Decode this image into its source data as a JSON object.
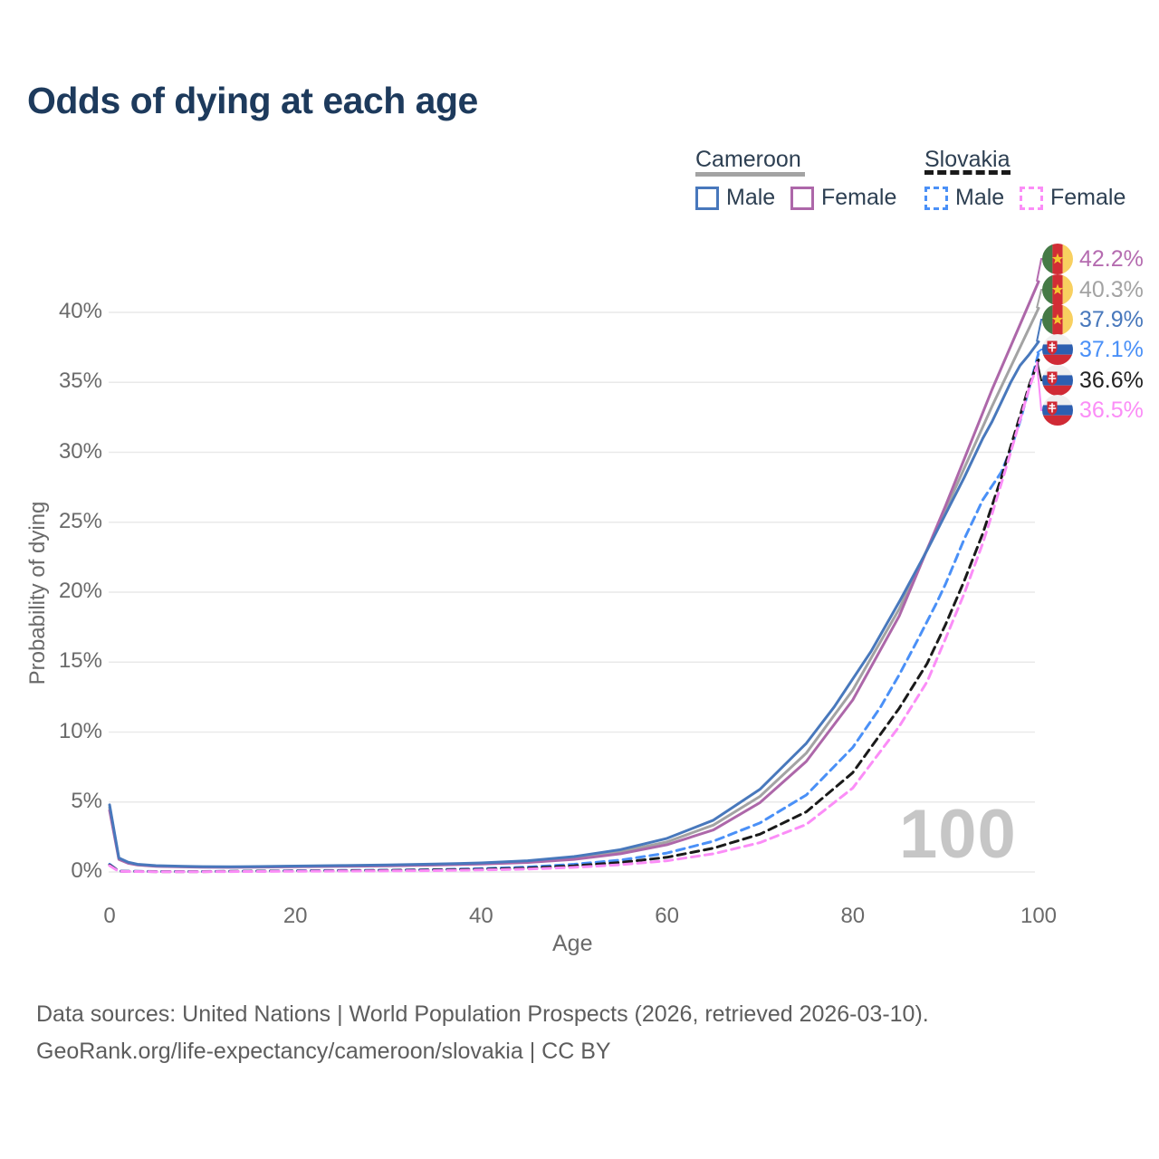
{
  "title": "Odds of dying at each age",
  "legend": {
    "groups": [
      {
        "name": "Cameroon",
        "line_style": "solid",
        "underline_color": "#a3a3a3",
        "items": [
          {
            "label": "Male",
            "color": "#4878bc"
          },
          {
            "label": "Female",
            "color": "#ad67a9"
          }
        ]
      },
      {
        "name": "Slovakia",
        "line_style": "dashed",
        "underline_color": "#1a1a1a",
        "items": [
          {
            "label": "Male",
            "color": "#4a90f7"
          },
          {
            "label": "Female",
            "color": "#fb8df7"
          }
        ]
      }
    ]
  },
  "chart_data": {
    "type": "line",
    "title": "Odds of dying at each age",
    "xlabel": "Age",
    "ylabel": "Probability of dying",
    "xlim": [
      0,
      100
    ],
    "ylim": [
      0,
      44
    ],
    "x_ticks": [
      0,
      20,
      40,
      60,
      80,
      100
    ],
    "y_ticks": [
      0,
      5,
      10,
      15,
      20,
      25,
      30,
      35,
      40
    ],
    "y_tick_suffix": "%",
    "grid": "horizontal",
    "gridline_color": "#e9e9e9",
    "legend_position": "top-right",
    "watermark": "100",
    "series": [
      {
        "id": "cameroon-both",
        "name": "Cameroon Both sexes",
        "color": "#a3a3a3",
        "dash": false,
        "end_value_label": "40.3%",
        "points": [
          [
            0,
            4.6
          ],
          [
            1,
            0.95
          ],
          [
            2,
            0.66
          ],
          [
            3,
            0.52
          ],
          [
            5,
            0.42
          ],
          [
            8,
            0.38
          ],
          [
            10,
            0.36
          ],
          [
            13,
            0.35
          ],
          [
            15,
            0.36
          ],
          [
            20,
            0.4
          ],
          [
            25,
            0.43
          ],
          [
            30,
            0.47
          ],
          [
            35,
            0.52
          ],
          [
            40,
            0.6
          ],
          [
            45,
            0.74
          ],
          [
            50,
            1.0
          ],
          [
            55,
            1.45
          ],
          [
            60,
            2.15
          ],
          [
            65,
            3.35
          ],
          [
            70,
            5.4
          ],
          [
            75,
            8.5
          ],
          [
            80,
            13.0
          ],
          [
            85,
            18.8
          ],
          [
            90,
            25.9
          ],
          [
            95,
            33.3
          ],
          [
            100,
            40.3
          ]
        ]
      },
      {
        "id": "cameroon-female",
        "name": "Cameroon Female",
        "color": "#ad67a9",
        "dash": false,
        "end_value_label": "42.2%",
        "points": [
          [
            0,
            4.4
          ],
          [
            1,
            0.9
          ],
          [
            2,
            0.62
          ],
          [
            3,
            0.5
          ],
          [
            5,
            0.4
          ],
          [
            8,
            0.36
          ],
          [
            10,
            0.34
          ],
          [
            13,
            0.33
          ],
          [
            15,
            0.34
          ],
          [
            20,
            0.37
          ],
          [
            25,
            0.4
          ],
          [
            30,
            0.44
          ],
          [
            35,
            0.49
          ],
          [
            40,
            0.56
          ],
          [
            45,
            0.68
          ],
          [
            50,
            0.9
          ],
          [
            55,
            1.3
          ],
          [
            60,
            1.95
          ],
          [
            65,
            3.0
          ],
          [
            70,
            4.95
          ],
          [
            75,
            7.9
          ],
          [
            80,
            12.3
          ],
          [
            85,
            18.3
          ],
          [
            90,
            26.2
          ],
          [
            95,
            34.5
          ],
          [
            100,
            42.2
          ]
        ]
      },
      {
        "id": "cameroon-male",
        "name": "Cameroon Male",
        "color": "#4878bc",
        "dash": false,
        "end_value_label": "37.9%",
        "points": [
          [
            0,
            4.8
          ],
          [
            1,
            1.0
          ],
          [
            2,
            0.7
          ],
          [
            3,
            0.55
          ],
          [
            5,
            0.45
          ],
          [
            8,
            0.4
          ],
          [
            10,
            0.38
          ],
          [
            13,
            0.37
          ],
          [
            15,
            0.38
          ],
          [
            20,
            0.42
          ],
          [
            25,
            0.46
          ],
          [
            30,
            0.5
          ],
          [
            35,
            0.56
          ],
          [
            40,
            0.65
          ],
          [
            45,
            0.8
          ],
          [
            50,
            1.1
          ],
          [
            55,
            1.6
          ],
          [
            60,
            2.4
          ],
          [
            65,
            3.7
          ],
          [
            70,
            5.9
          ],
          [
            75,
            9.2
          ],
          [
            78,
            11.8
          ],
          [
            80,
            13.8
          ],
          [
            82,
            15.8
          ],
          [
            85,
            19.3
          ],
          [
            88,
            23.0
          ],
          [
            90,
            25.6
          ],
          [
            92,
            28.2
          ],
          [
            94,
            31.0
          ],
          [
            95,
            32.2
          ],
          [
            96,
            33.6
          ],
          [
            97,
            35.0
          ],
          [
            98,
            36.2
          ],
          [
            99,
            37.0
          ],
          [
            100,
            37.9
          ]
        ]
      },
      {
        "id": "slovakia-male",
        "name": "Slovakia Male",
        "color": "#4a90f7",
        "dash": true,
        "end_value_label": "37.1%",
        "points": [
          [
            0,
            0.55
          ],
          [
            1,
            0.06
          ],
          [
            5,
            0.03
          ],
          [
            10,
            0.03
          ],
          [
            15,
            0.06
          ],
          [
            20,
            0.09
          ],
          [
            25,
            0.11
          ],
          [
            30,
            0.13
          ],
          [
            35,
            0.17
          ],
          [
            40,
            0.24
          ],
          [
            45,
            0.35
          ],
          [
            50,
            0.55
          ],
          [
            55,
            0.85
          ],
          [
            60,
            1.35
          ],
          [
            65,
            2.2
          ],
          [
            70,
            3.5
          ],
          [
            75,
            5.5
          ],
          [
            80,
            8.9
          ],
          [
            83,
            11.8
          ],
          [
            85,
            14.1
          ],
          [
            87,
            16.6
          ],
          [
            89,
            19.2
          ],
          [
            90,
            20.6
          ],
          [
            91,
            22.2
          ],
          [
            92,
            23.8
          ],
          [
            93,
            25.2
          ],
          [
            94,
            26.6
          ],
          [
            95,
            27.6
          ],
          [
            96,
            28.6
          ],
          [
            97,
            30.2
          ],
          [
            98,
            32.2
          ],
          [
            99,
            34.6
          ],
          [
            100,
            37.1
          ]
        ]
      },
      {
        "id": "slovakia-both",
        "name": "Slovakia Both sexes",
        "color": "#1a1a1a",
        "dash": true,
        "end_value_label": "36.6%",
        "points": [
          [
            0,
            0.5
          ],
          [
            1,
            0.05
          ],
          [
            5,
            0.025
          ],
          [
            10,
            0.025
          ],
          [
            15,
            0.05
          ],
          [
            20,
            0.07
          ],
          [
            25,
            0.09
          ],
          [
            30,
            0.11
          ],
          [
            35,
            0.14
          ],
          [
            40,
            0.19
          ],
          [
            45,
            0.28
          ],
          [
            50,
            0.44
          ],
          [
            55,
            0.68
          ],
          [
            60,
            1.05
          ],
          [
            65,
            1.7
          ],
          [
            70,
            2.7
          ],
          [
            75,
            4.3
          ],
          [
            80,
            7.1
          ],
          [
            85,
            11.7
          ],
          [
            88,
            14.9
          ],
          [
            90,
            17.7
          ],
          [
            92,
            20.8
          ],
          [
            94,
            24.2
          ],
          [
            95,
            26.2
          ],
          [
            96,
            28.2
          ],
          [
            97,
            30.4
          ],
          [
            98,
            32.6
          ],
          [
            99,
            34.8
          ],
          [
            100,
            36.6
          ]
        ]
      },
      {
        "id": "slovakia-female",
        "name": "Slovakia Female",
        "color": "#fb8df7",
        "dash": true,
        "end_value_label": "36.5%",
        "points": [
          [
            0,
            0.45
          ],
          [
            1,
            0.04
          ],
          [
            5,
            0.02
          ],
          [
            10,
            0.02
          ],
          [
            15,
            0.035
          ],
          [
            20,
            0.05
          ],
          [
            25,
            0.065
          ],
          [
            30,
            0.08
          ],
          [
            35,
            0.1
          ],
          [
            40,
            0.14
          ],
          [
            45,
            0.21
          ],
          [
            50,
            0.33
          ],
          [
            55,
            0.52
          ],
          [
            60,
            0.8
          ],
          [
            65,
            1.3
          ],
          [
            70,
            2.1
          ],
          [
            75,
            3.4
          ],
          [
            80,
            6.0
          ],
          [
            85,
            10.4
          ],
          [
            88,
            13.6
          ],
          [
            90,
            16.7
          ],
          [
            92,
            19.9
          ],
          [
            94,
            23.5
          ],
          [
            95,
            25.6
          ],
          [
            96,
            27.8
          ],
          [
            97,
            30.0
          ],
          [
            98,
            32.3
          ],
          [
            99,
            34.6
          ],
          [
            100,
            36.5
          ]
        ]
      }
    ]
  },
  "end_labels": [
    {
      "series": "cameroon-female",
      "value": "42.2%",
      "color": "#b56cb0",
      "flag": "cameroon"
    },
    {
      "series": "cameroon-both",
      "value": "40.3%",
      "color": "#a3a3a3",
      "flag": "cameroon"
    },
    {
      "series": "cameroon-male",
      "value": "37.9%",
      "color": "#4878bc",
      "flag": "cameroon"
    },
    {
      "series": "slovakia-male",
      "value": "37.1%",
      "color": "#4a90f7",
      "flag": "slovakia"
    },
    {
      "series": "slovakia-both",
      "value": "36.6%",
      "color": "#222222",
      "flag": "slovakia"
    },
    {
      "series": "slovakia-female",
      "value": "36.5%",
      "color": "#fb8df7",
      "flag": "slovakia"
    }
  ],
  "flags": {
    "cameroon": {
      "green": "#457a46",
      "red": "#d22d35",
      "yellow": "#f8d060",
      "star": "#f4c630"
    },
    "slovakia": {
      "white": "#f0f0f0",
      "blue": "#2d5fb0",
      "red": "#d02a35",
      "shield": "#d02a35",
      "cross": "#ffffff"
    }
  },
  "footer": {
    "line1": "Data sources: United Nations | World Population Prospects (2026, retrieved 2026-03-10).",
    "line2": "GeoRank.org/life-expectancy/cameroon/slovakia | CC BY"
  }
}
